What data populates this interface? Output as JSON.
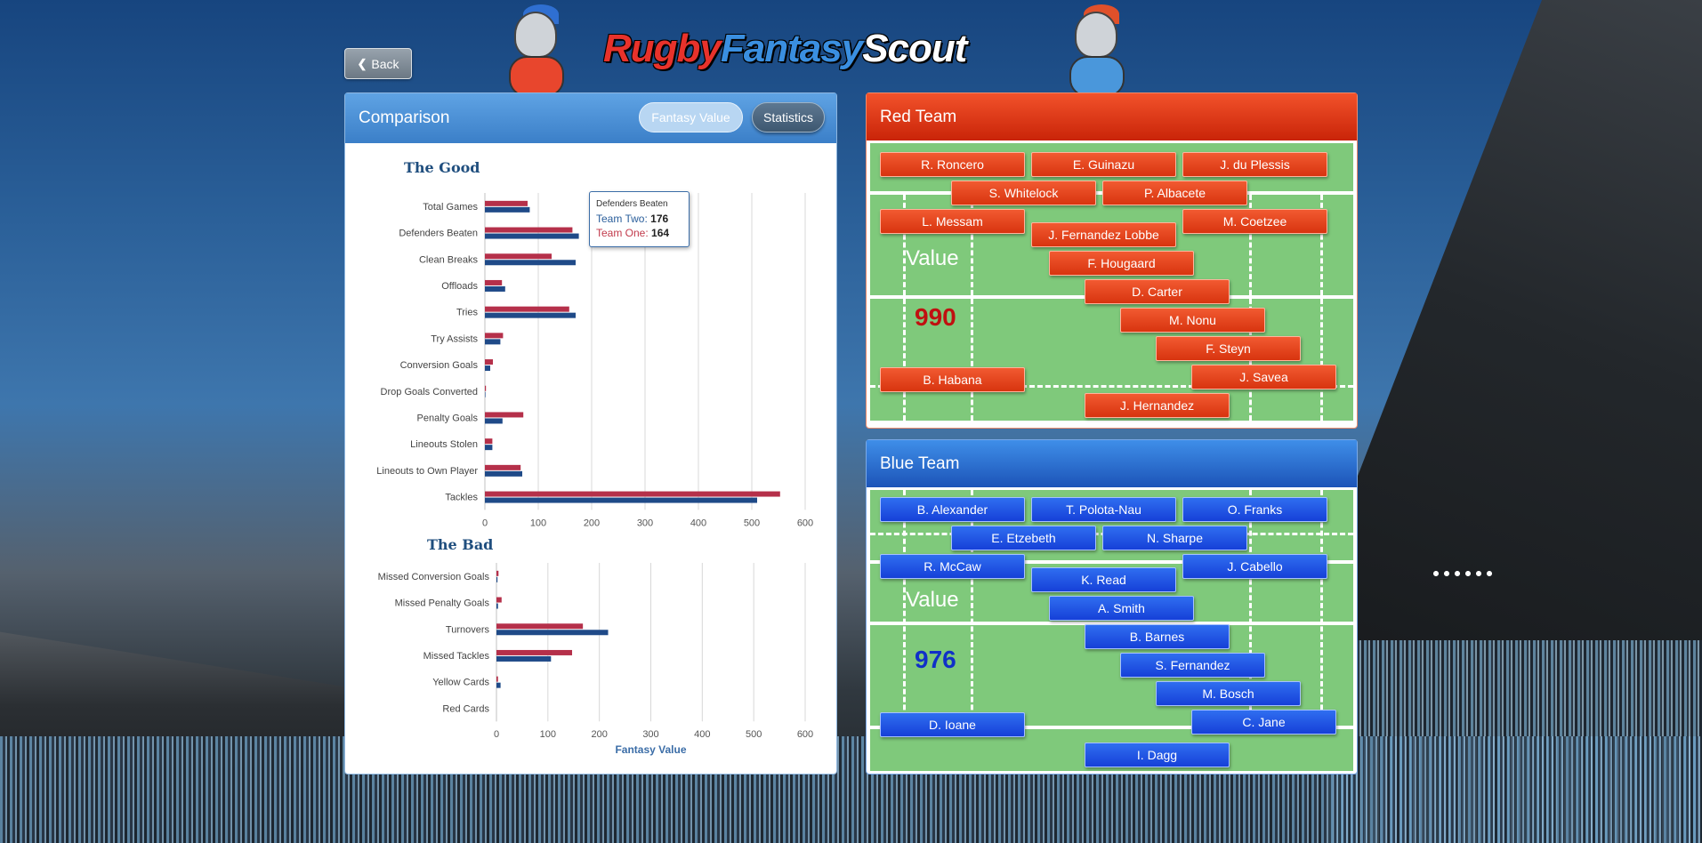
{
  "header": {
    "logo": {
      "part1": "Rugby",
      "part2": "Fantasy",
      "part3": "Scout"
    },
    "back_label": "Back"
  },
  "comparison": {
    "title": "Comparison",
    "toggle_fantasy_value": "Fantasy Value",
    "toggle_statistics": "Statistics",
    "good_title": "The Good",
    "bad_title": "The Bad",
    "tooltip": {
      "title": "Defenders Beaten",
      "team_two_label": "Team Two:",
      "team_two_value": "176",
      "team_one_label": "Team One:",
      "team_one_value": "164"
    }
  },
  "chart_data": [
    {
      "type": "bar",
      "orientation": "horizontal",
      "title": "The Good",
      "categories": [
        "Total Games",
        "Defenders Beaten",
        "Clean Breaks",
        "Offloads",
        "Tries",
        "Try Assists",
        "Conversion Goals",
        "Drop Goals Converted",
        "Penalty Goals",
        "Lineouts Stolen",
        "Lineouts to Own Player",
        "Tackles"
      ],
      "series": [
        {
          "name": "Team One",
          "color": "#b5304a",
          "values": [
            80,
            164,
            125,
            32,
            158,
            34,
            15,
            2,
            72,
            14,
            67,
            553
          ]
        },
        {
          "name": "Team Two",
          "color": "#1f4a88",
          "values": [
            84,
            176,
            170,
            38,
            170,
            29,
            10,
            1,
            33,
            14,
            70,
            510
          ]
        }
      ],
      "xticks": [
        0,
        100,
        200,
        300,
        400,
        500,
        600
      ],
      "xlim": [
        0,
        600
      ],
      "xlabel": ""
    },
    {
      "type": "bar",
      "orientation": "horizontal",
      "title": "The Bad",
      "categories": [
        "Missed Conversion Goals",
        "Missed Penalty Goals",
        "Turnovers",
        "Missed Tackles",
        "Yellow Cards",
        "Red Cards"
      ],
      "series": [
        {
          "name": "Team One",
          "color": "#b5304a",
          "values": [
            4,
            10,
            168,
            147,
            3,
            0
          ]
        },
        {
          "name": "Team Two",
          "color": "#1f4a88",
          "values": [
            2,
            3,
            217,
            106,
            8,
            0
          ]
        }
      ],
      "xticks": [
        0,
        100,
        200,
        300,
        400,
        500,
        600
      ],
      "xlim": [
        0,
        600
      ],
      "xlabel": "Fantasy Value"
    }
  ],
  "red_team": {
    "title": "Red Team",
    "value_label": "Value",
    "value": "990",
    "players": [
      "R. Roncero",
      "E. Guinazu",
      "J. du Plessis",
      "S. Whitelock",
      "P. Albacete",
      "L. Messam",
      "J. Fernandez Lobbe",
      "M. Coetzee",
      "F. Hougaard",
      "D. Carter",
      "M. Nonu",
      "F. Steyn",
      "B. Habana",
      "J. Savea",
      "J. Hernandez"
    ]
  },
  "blue_team": {
    "title": "Blue Team",
    "value_label": "Value",
    "value": "976",
    "players": [
      "B. Alexander",
      "T. Polota-Nau",
      "O. Franks",
      "E. Etzebeth",
      "N. Sharpe",
      "R. McCaw",
      "K. Read",
      "J. Cabello",
      "A. Smith",
      "B. Barnes",
      "S. Fernandez",
      "M. Bosch",
      "D. Ioane",
      "C. Jane",
      "I. Dagg"
    ]
  }
}
